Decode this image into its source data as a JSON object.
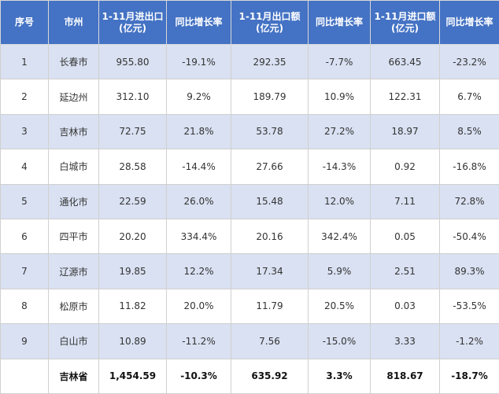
{
  "headers": [
    "序号",
    "市州",
    "1-11月进出口\n(亿元)",
    "同比增长率",
    "1-11月出口额\n(亿元)",
    "同比增长率",
    "1-11月进口额\n(亿元)",
    "同比增长率"
  ],
  "rows": [
    [
      "1",
      "长春市",
      "955.80",
      "-19.1%",
      "292.35",
      "-7.7%",
      "663.45",
      "-23.2%"
    ],
    [
      "2",
      "延边州",
      "312.10",
      "9.2%",
      "189.79",
      "10.9%",
      "122.31",
      "6.7%"
    ],
    [
      "3",
      "吉林市",
      "72.75",
      "21.8%",
      "53.78",
      "27.2%",
      "18.97",
      "8.5%"
    ],
    [
      "4",
      "白城市",
      "28.58",
      "-14.4%",
      "27.66",
      "-14.3%",
      "0.92",
      "-16.8%"
    ],
    [
      "5",
      "通化市",
      "22.59",
      "26.0%",
      "15.48",
      "12.0%",
      "7.11",
      "72.8%"
    ],
    [
      "6",
      "四平市",
      "20.20",
      "334.4%",
      "20.16",
      "342.4%",
      "0.05",
      "-50.4%"
    ],
    [
      "7",
      "辽源市",
      "19.85",
      "12.2%",
      "17.34",
      "5.9%",
      "2.51",
      "89.3%"
    ],
    [
      "8",
      "松原市",
      "11.82",
      "20.0%",
      "11.79",
      "20.5%",
      "0.03",
      "-53.5%"
    ],
    [
      "9",
      "白山市",
      "10.89",
      "-11.2%",
      "7.56",
      "-15.0%",
      "3.33",
      "-1.2%"
    ]
  ],
  "total": [
    "",
    "吉林省",
    "1,454.59",
    "-10.3%",
    "635.92",
    "3.3%",
    "818.67",
    "-18.7%"
  ]
}
